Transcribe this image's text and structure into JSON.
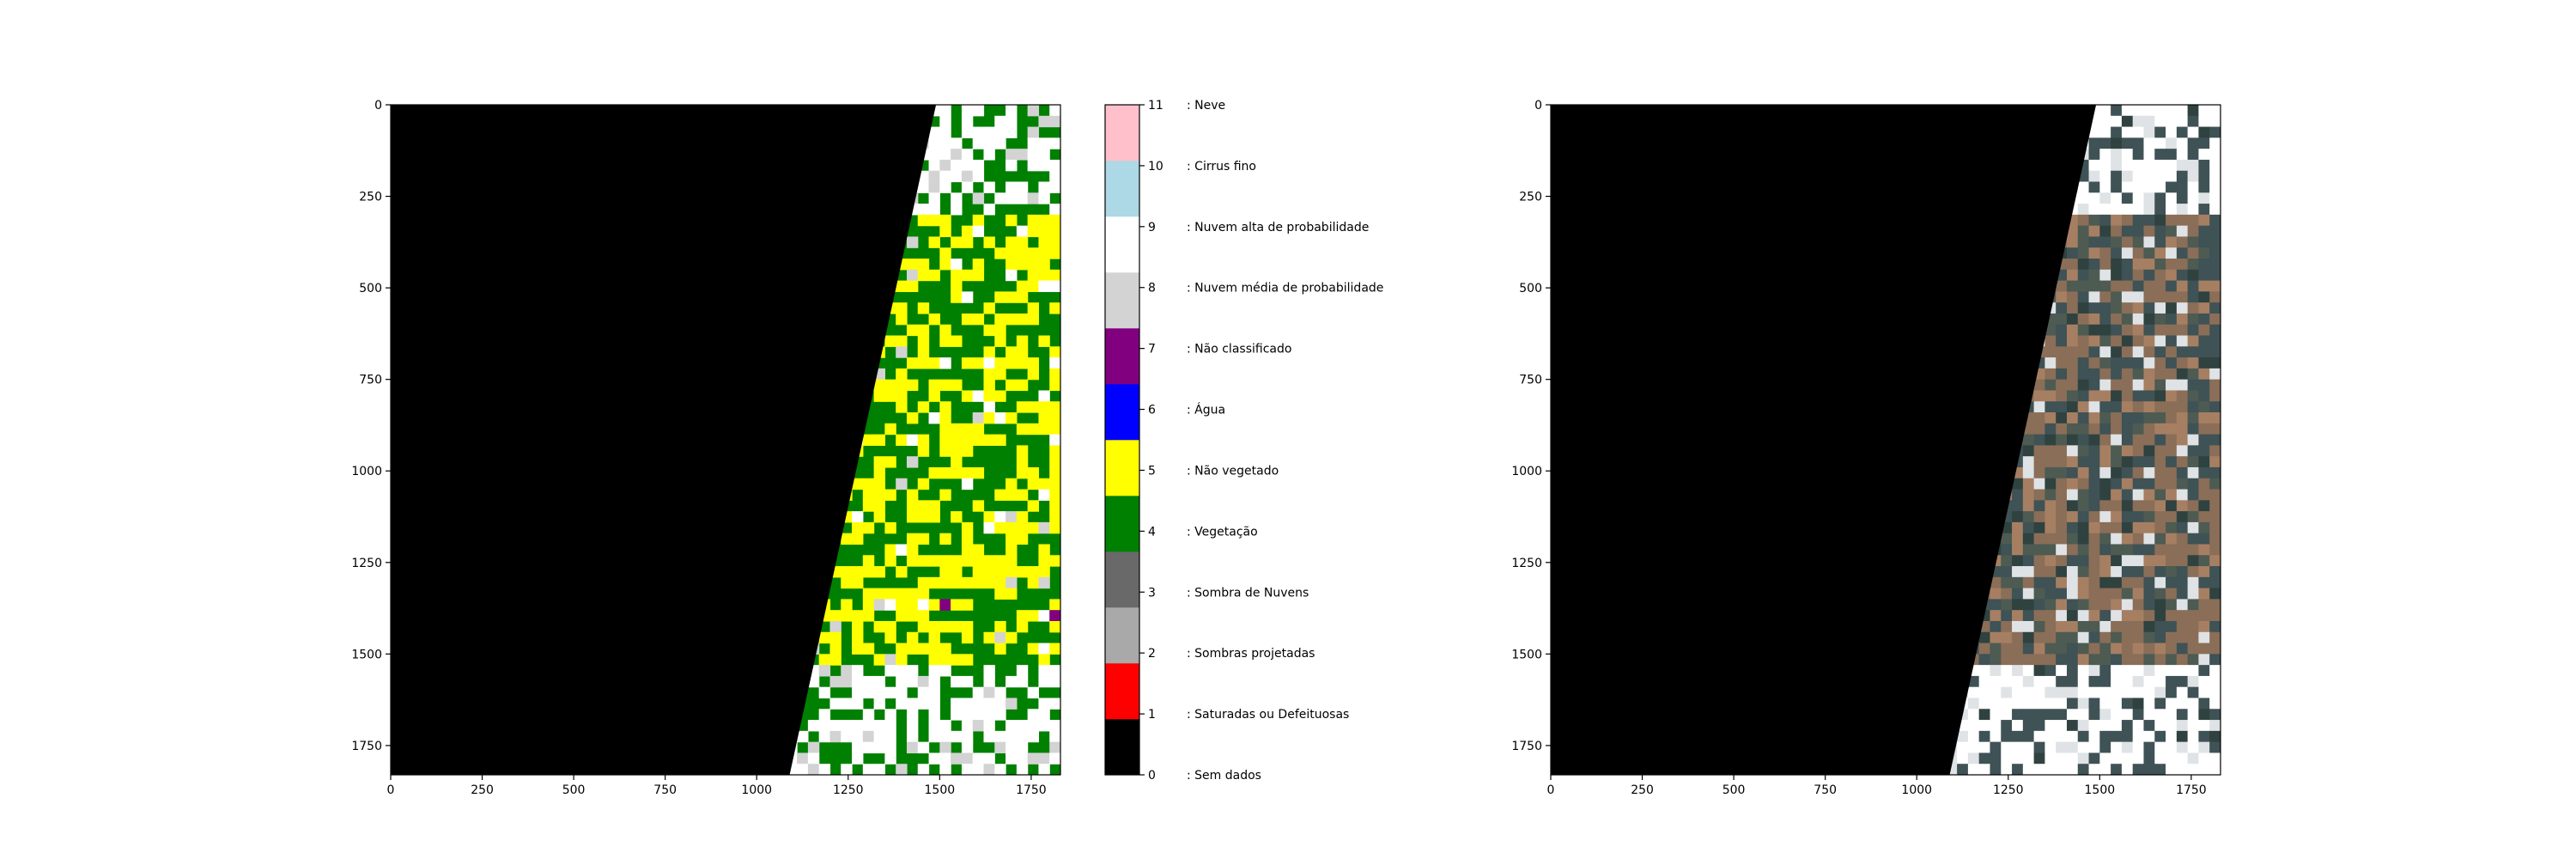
{
  "chart_data": [
    {
      "type": "heatmap",
      "description_source": "scene classification map",
      "xlim": [
        0,
        1830
      ],
      "ylim": [
        1830,
        0
      ],
      "x_ticks": [
        0,
        250,
        500,
        750,
        1000,
        1250,
        1500,
        1750
      ],
      "y_ticks": [
        0,
        250,
        500,
        750,
        1000,
        1250,
        1500,
        1750
      ],
      "x_tick_labels": [
        "0",
        "250",
        "500",
        "750",
        "1000",
        "1250",
        "1500",
        "1750"
      ],
      "y_tick_labels": [
        "0",
        "250",
        "500",
        "750",
        "1000",
        "1250",
        "1500",
        "1750"
      ],
      "no_data_polygon": [
        [
          0,
          0
        ],
        [
          1490,
          0
        ],
        [
          1090,
          1830
        ],
        [
          0,
          1830
        ]
      ],
      "dominant_classes": [
        "Vegetação",
        "Não vegetado",
        "Nuvem alta de probabilidade"
      ],
      "colorbar": {
        "values": [
          0,
          1,
          2,
          3,
          4,
          5,
          6,
          7,
          8,
          9,
          10,
          11
        ],
        "tick_labels": [
          "0",
          "1",
          "2",
          "3",
          "4",
          "5",
          "6",
          "7",
          "8",
          "9",
          "10",
          "11"
        ],
        "colors": [
          "#000000",
          "#ff0000",
          "#a9a9a9",
          "#696969",
          "#008000",
          "#ffff00",
          "#0000ff",
          "#800080",
          "#d3d3d3",
          "#ffffff",
          "#add8e6",
          "#ffc0cb"
        ],
        "class_labels": [
          ": Sem dados",
          ": Saturadas ou Defeituosas",
          ": Sombras projetadas",
          ": Sombra de Nuvens",
          ": Vegetação",
          ": Não vegetado",
          ": Água",
          ": Não classificado",
          ": Nuvem média de probabilidade",
          ": Nuvem alta de probabilidade",
          ": Cirrus fino",
          ": Neve"
        ]
      }
    },
    {
      "type": "heatmap",
      "description_source": "true color image",
      "xlim": [
        0,
        1830
      ],
      "ylim": [
        1830,
        0
      ],
      "x_ticks": [
        0,
        250,
        500,
        750,
        1000,
        1250,
        1500,
        1750
      ],
      "y_ticks": [
        0,
        250,
        500,
        750,
        1000,
        1250,
        1500,
        1750
      ],
      "x_tick_labels": [
        "0",
        "250",
        "500",
        "750",
        "1000",
        "1250",
        "1500",
        "1750"
      ],
      "y_tick_labels": [
        "0",
        "250",
        "500",
        "750",
        "1000",
        "1250",
        "1500",
        "1750"
      ],
      "no_data_polygon": [
        [
          0,
          0
        ],
        [
          1490,
          0
        ],
        [
          1090,
          1830
        ],
        [
          0,
          1830
        ]
      ],
      "palette": [
        "#3f5255",
        "#4d5b52",
        "#8a6e58",
        "#a67f63",
        "#dfe3e6",
        "#ffffff",
        "#2f4240"
      ]
    }
  ]
}
